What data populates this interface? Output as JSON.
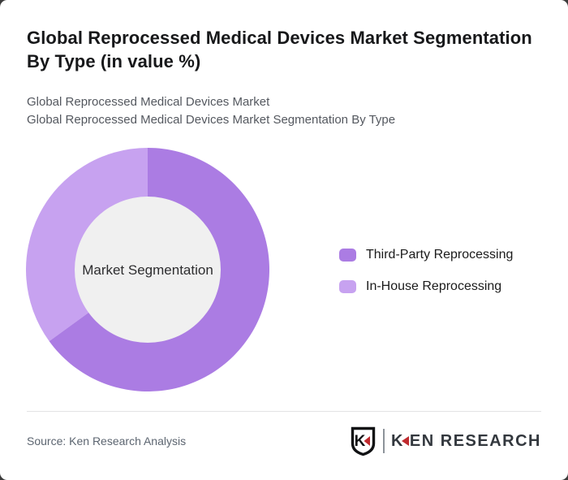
{
  "header": {
    "title": "Global Reprocessed Medical Devices Market Segmentation By Type (in value %)",
    "subtitle_line1": "Global Reprocessed Medical Devices Market",
    "subtitle_line2": "Global Reprocessed Medical Devices Market Segmentation By Type"
  },
  "chart_data": {
    "type": "pie",
    "variant": "donut",
    "title": "Global Reprocessed Medical Devices Market Segmentation By Type (in value %)",
    "units": "value %",
    "center_label": "Market Segmentation",
    "start_angle_deg": 0,
    "direction": "clockwise",
    "inner_radius_ratio": 0.6,
    "inner_circle_color": "#f0f0f0",
    "legend_position": "right",
    "segments": [
      {
        "label": "Third-Party Reprocessing",
        "value": 65,
        "color": "#ab7ce3"
      },
      {
        "label": "In-House Reprocessing",
        "value": 35,
        "color": "#c7a2f0"
      }
    ]
  },
  "footer": {
    "source": "Source: Ken Research Analysis",
    "logo": {
      "emblem_letter": "K",
      "brand_first_letter": "K",
      "brand_rest": "EN RESEARCH",
      "accent_color": "#c02a2e"
    }
  },
  "colors": {
    "page_background": "#3b3b3b",
    "card_background": "#ffffff"
  }
}
